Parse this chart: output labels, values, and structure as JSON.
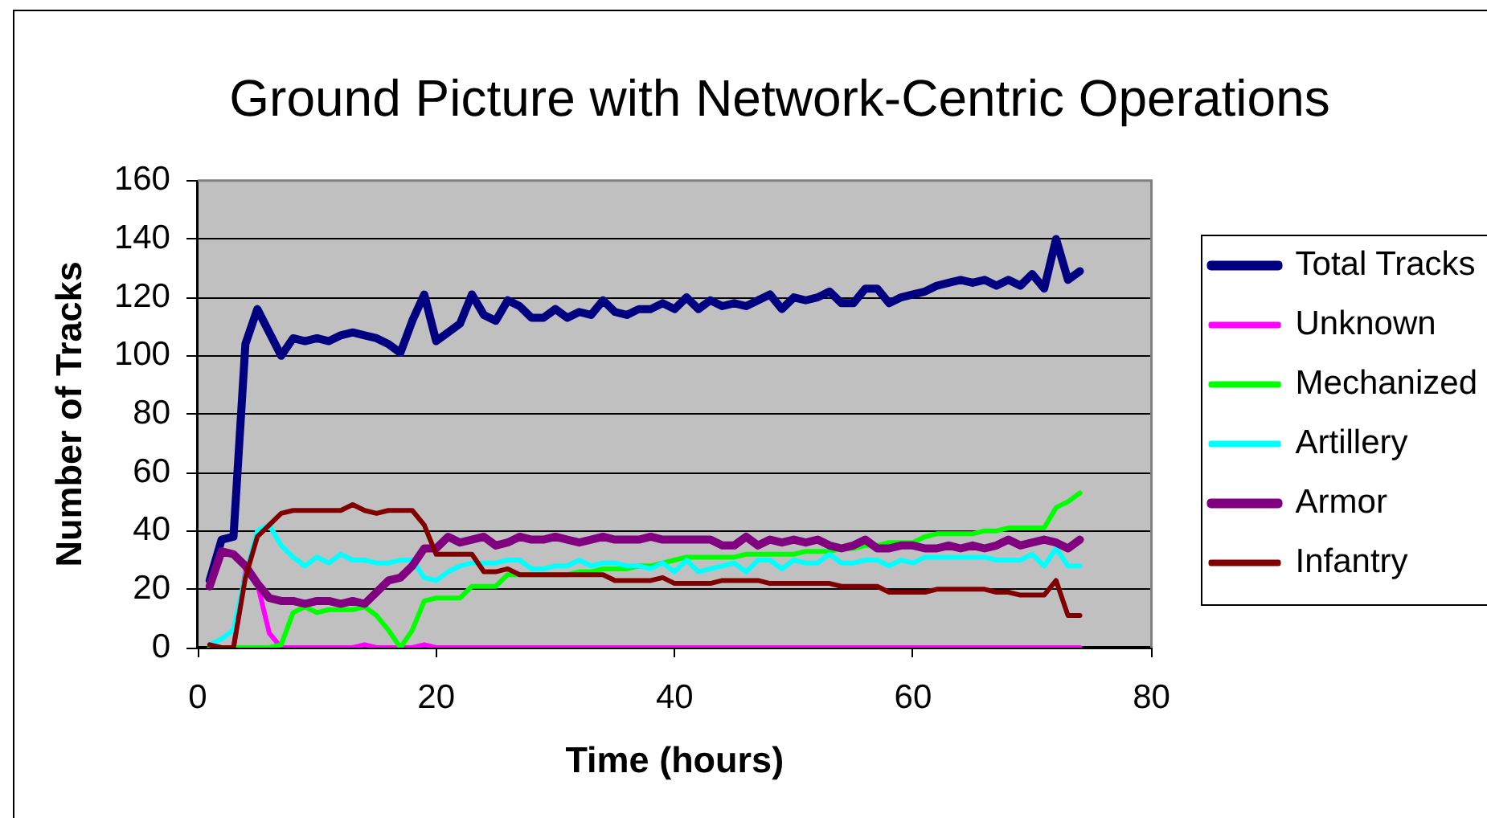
{
  "chart_data": {
    "type": "line",
    "title": "Ground Picture with Network-Centric Operations",
    "xlabel": "Time (hours)",
    "ylabel": "Number of Tracks",
    "x": [
      1,
      2,
      3,
      4,
      5,
      6,
      7,
      8,
      9,
      10,
      11,
      12,
      13,
      14,
      15,
      16,
      17,
      18,
      19,
      20,
      21,
      22,
      23,
      24,
      25,
      26,
      27,
      28,
      29,
      30,
      31,
      32,
      33,
      34,
      35,
      36,
      37,
      38,
      39,
      40,
      41,
      42,
      43,
      44,
      45,
      46,
      47,
      48,
      49,
      50,
      51,
      52,
      53,
      54,
      55,
      56,
      57,
      58,
      59,
      60,
      61,
      62,
      63,
      64,
      65,
      66,
      67,
      68,
      69,
      70,
      71,
      72,
      73,
      74
    ],
    "series": [
      {
        "name": "Total Tracks",
        "color": "#000080",
        "values": [
          23,
          37,
          38,
          104,
          116,
          108,
          100,
          106,
          105,
          106,
          105,
          107,
          108,
          107,
          106,
          104,
          101,
          112,
          121,
          105,
          108,
          111,
          121,
          114,
          112,
          119,
          117,
          113,
          113,
          116,
          113,
          115,
          114,
          119,
          115,
          114,
          116,
          116,
          118,
          116,
          120,
          116,
          119,
          117,
          118,
          117,
          119,
          121,
          116,
          120,
          119,
          120,
          122,
          118,
          118,
          123,
          123,
          118,
          120,
          121,
          122,
          124,
          125,
          126,
          125,
          126,
          124,
          126,
          124,
          128,
          123,
          140,
          126,
          129
        ]
      },
      {
        "name": "Unknown",
        "color": "#ff00ff",
        "values": [
          null,
          null,
          0,
          26,
          22,
          5,
          0,
          0,
          0,
          0,
          0,
          0,
          0,
          1,
          0,
          0,
          0,
          0,
          1,
          0,
          0,
          0,
          0,
          0,
          0,
          0,
          0,
          0,
          0,
          0,
          0,
          0,
          0,
          0,
          0,
          0,
          0,
          0,
          0,
          0,
          0,
          0,
          0,
          0,
          0,
          0,
          0,
          0,
          0,
          0,
          0,
          0,
          0,
          0,
          0,
          0,
          0,
          0,
          0,
          0,
          0,
          0,
          0,
          0,
          0,
          0,
          0,
          0,
          0,
          0,
          0,
          0,
          0,
          0
        ]
      },
      {
        "name": "Mechanized",
        "color": "#00ff00",
        "values": [
          0,
          0,
          0,
          0,
          0,
          0,
          1,
          12,
          14,
          12,
          13,
          13,
          13,
          14,
          11,
          6,
          0,
          6,
          16,
          17,
          17,
          17,
          21,
          21,
          21,
          25,
          25,
          25,
          25,
          25,
          25,
          26,
          26,
          27,
          27,
          27,
          28,
          28,
          29,
          30,
          31,
          31,
          31,
          31,
          31,
          32,
          32,
          32,
          32,
          32,
          33,
          33,
          33,
          34,
          34,
          35,
          35,
          36,
          36,
          36,
          38,
          39,
          39,
          39,
          39,
          40,
          40,
          41,
          41,
          41,
          41,
          48,
          50,
          53
        ]
      },
      {
        "name": "Artillery",
        "color": "#00ffff",
        "values": [
          1,
          3,
          6,
          25,
          40,
          42,
          35,
          31,
          28,
          31,
          29,
          32,
          30,
          30,
          29,
          29,
          30,
          30,
          24,
          23,
          26,
          28,
          29,
          29,
          29,
          30,
          30,
          27,
          27,
          28,
          28,
          30,
          28,
          29,
          29,
          28,
          28,
          27,
          29,
          26,
          30,
          26,
          27,
          28,
          29,
          26,
          30,
          30,
          27,
          30,
          29,
          29,
          32,
          29,
          29,
          30,
          30,
          28,
          30,
          29,
          31,
          31,
          31,
          31,
          31,
          31,
          30,
          30,
          30,
          32,
          28,
          34,
          28,
          28
        ]
      },
      {
        "name": "Armor",
        "color": "#800080",
        "values": [
          21,
          33,
          32,
          28,
          22,
          17,
          16,
          16,
          15,
          16,
          16,
          15,
          16,
          15,
          19,
          23,
          24,
          28,
          34,
          34,
          38,
          36,
          37,
          38,
          35,
          36,
          38,
          37,
          37,
          38,
          37,
          36,
          37,
          38,
          37,
          37,
          37,
          38,
          37,
          37,
          37,
          37,
          37,
          35,
          35,
          38,
          35,
          37,
          36,
          37,
          36,
          37,
          35,
          34,
          35,
          37,
          34,
          34,
          35,
          35,
          34,
          34,
          35,
          34,
          35,
          34,
          35,
          37,
          35,
          36,
          37,
          36,
          34,
          37
        ]
      },
      {
        "name": "Infantry",
        "color": "#800000",
        "values": [
          1,
          0,
          0,
          24,
          38,
          42,
          46,
          47,
          47,
          47,
          47,
          47,
          49,
          47,
          46,
          47,
          47,
          47,
          42,
          32,
          32,
          32,
          32,
          26,
          26,
          27,
          25,
          25,
          25,
          25,
          25,
          25,
          25,
          25,
          23,
          23,
          23,
          23,
          24,
          22,
          22,
          22,
          22,
          23,
          23,
          23,
          23,
          22,
          22,
          22,
          22,
          22,
          22,
          21,
          21,
          21,
          21,
          19,
          19,
          19,
          19,
          20,
          20,
          20,
          20,
          20,
          19,
          19,
          18,
          18,
          18,
          23,
          11,
          11
        ]
      }
    ],
    "xlim": [
      0,
      80
    ],
    "xticks": [
      0,
      20,
      40,
      60,
      80
    ],
    "ylim": [
      0,
      160
    ],
    "yticks": [
      0,
      20,
      40,
      60,
      80,
      100,
      120,
      140,
      160
    ],
    "grid": "y",
    "legend": "right"
  }
}
